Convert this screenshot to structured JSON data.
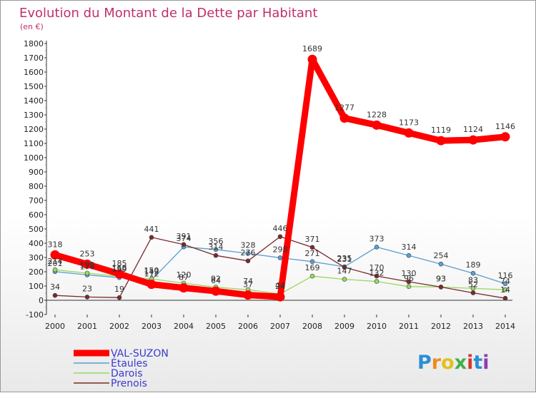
{
  "title": "Evolution du Montant de la Dette par Habitant",
  "subtitle": "(en €)",
  "brand": {
    "letters": [
      "P",
      "r",
      "o",
      "x",
      "i",
      "t",
      "i"
    ],
    "colors": [
      "#2a8fd8",
      "#f08a1c",
      "#e0c020",
      "#3fb04a",
      "#d23a2a",
      "#2a8fd8",
      "#8a3fb0"
    ]
  },
  "chart_data": {
    "type": "line",
    "x": [
      "2000",
      "2001",
      "2002",
      "2003",
      "2004",
      "2005",
      "2006",
      "2007",
      "2008",
      "2009",
      "2010",
      "2011",
      "2012",
      "2013",
      "2014"
    ],
    "ylim": [
      -100,
      1800
    ],
    "yticks": [
      "-100",
      "0",
      "100",
      "200",
      "300",
      "400",
      "500",
      "600",
      "700",
      "800",
      "900",
      "1000",
      "1100",
      "1200",
      "1300",
      "1400",
      "1500",
      "1600",
      "1700",
      "1800"
    ],
    "grid": false,
    "legend_position": "bottom-left",
    "series": [
      {
        "name": "VAL-SUZON",
        "color": "#ff0000",
        "values": [
          318,
          253,
          185,
          112,
          87,
          64,
          37,
          24,
          1689,
          1277,
          1228,
          1173,
          1119,
          1124,
          1146
        ]
      },
      {
        "name": "Étaules",
        "color": "#5a9fd0",
        "values": [
          201,
          178,
          159,
          142,
          374,
          356,
          328,
          298,
          271,
          235,
          373,
          314,
          254,
          189,
          116
        ]
      },
      {
        "name": "Darois",
        "color": "#98d860",
        "values": [
          214,
          190,
          168,
          150,
          120,
          92,
          74,
          44,
          169,
          147,
          132,
          96,
          93,
          83,
          74
        ]
      },
      {
        "name": "Prenois",
        "color": "#7a2a2a",
        "values": [
          34,
          23,
          19,
          441,
          391,
          314,
          276,
          446,
          371,
          231,
          170,
          130,
          93,
          52,
          14
        ]
      }
    ]
  }
}
